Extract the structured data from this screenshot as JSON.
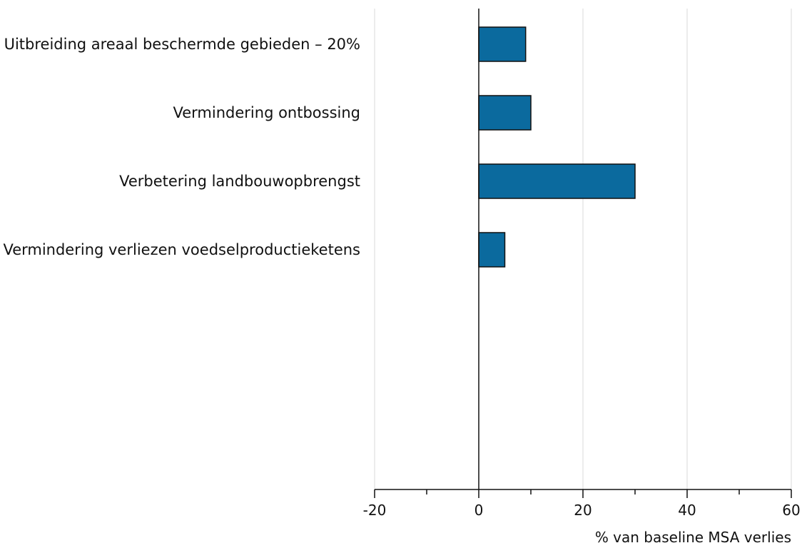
{
  "chart_data": {
    "type": "bar",
    "orientation": "horizontal",
    "title": "",
    "xlabel": "% van baseline MSA verlies",
    "ylabel": "",
    "categories": [
      "Uitbreiding areaal beschermde gebieden – 20%",
      "Vermindering ontbossing",
      "Verbetering landbouwopbrengst",
      "Vermindering verliezen voedselproductieketens"
    ],
    "series": [
      {
        "values": [
          9,
          10,
          30,
          5
        ]
      }
    ],
    "xlim": [
      -20,
      60
    ],
    "xticks": [
      -20,
      0,
      20,
      40,
      60
    ],
    "xtick_labels": [
      "-20",
      "0",
      "20",
      "40",
      "60"
    ],
    "grid": "vertical",
    "legend": "none",
    "colors": {
      "bar_fill": "#0b6a9e",
      "bar_stroke": "#111111",
      "grid": "#d9d9d9",
      "axis": "#111111"
    }
  }
}
